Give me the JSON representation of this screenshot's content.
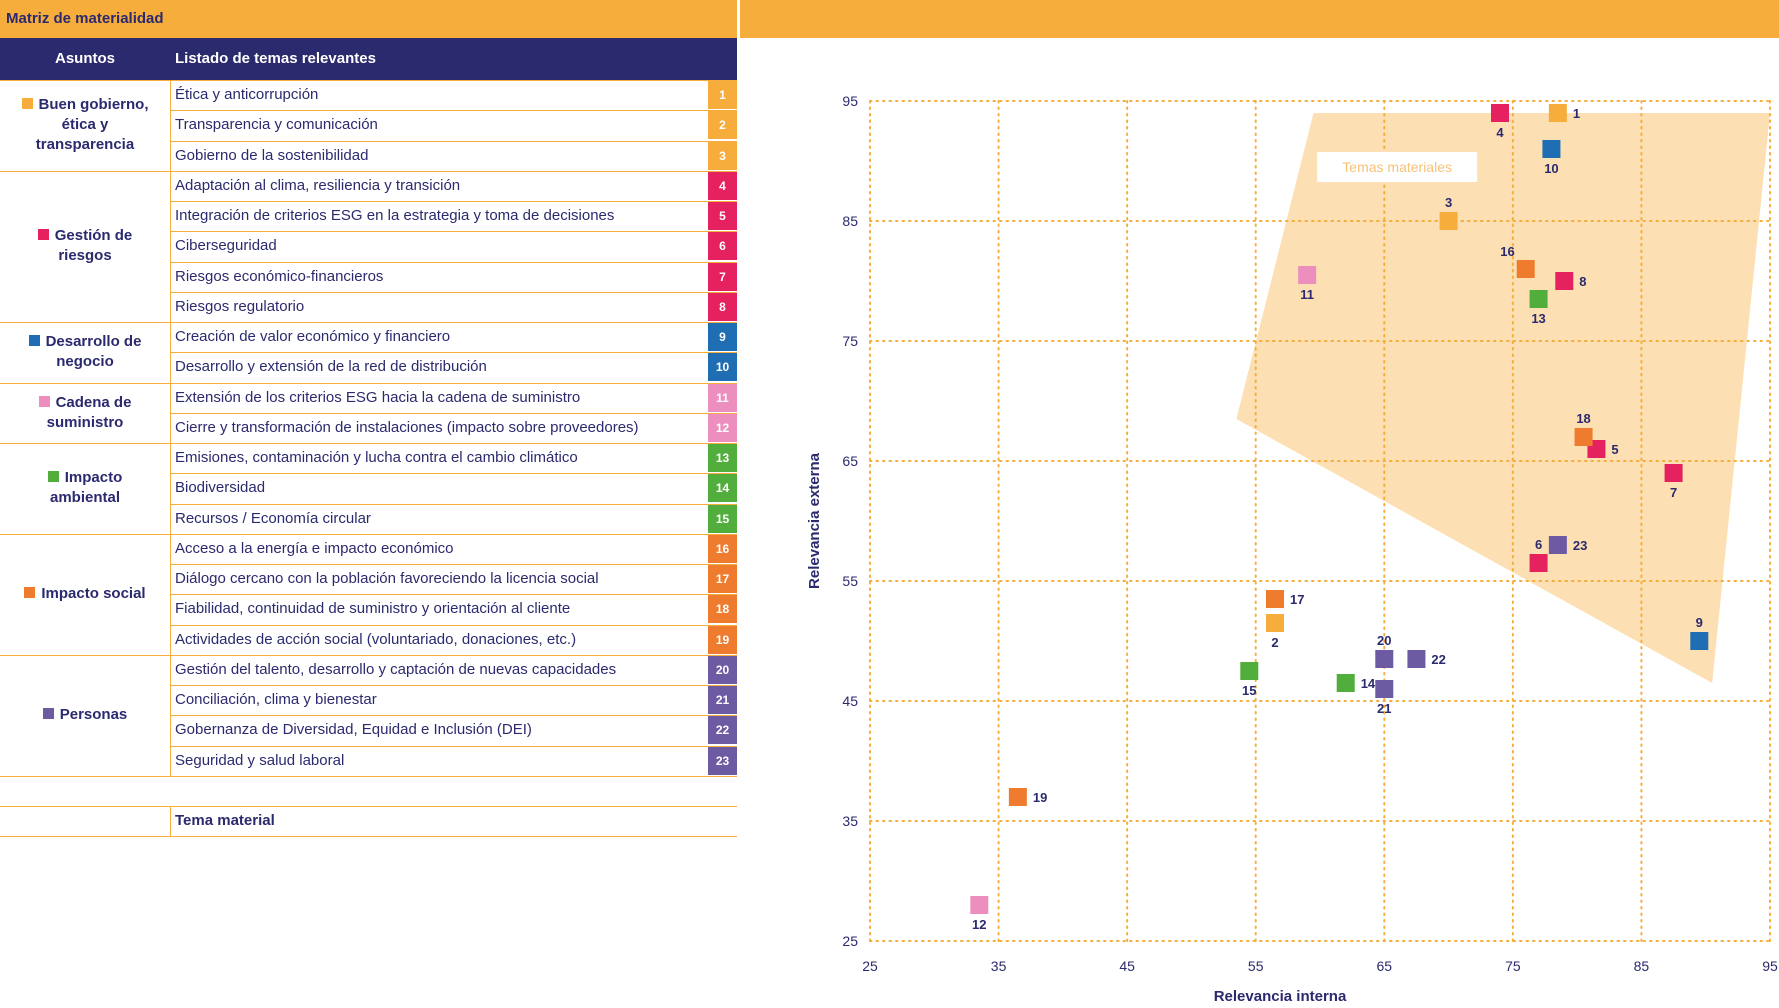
{
  "header": {
    "title": "Matriz de materialidad",
    "col_asuntos": "Asuntos",
    "col_temas": "Listado de temas relevantes",
    "footer_label": "Tema material"
  },
  "groups": [
    {
      "name": "Buen gobierno, ética y transparencia",
      "color": "#f6ad3b",
      "rows": [
        1,
        3
      ]
    },
    {
      "name": "Gestión de riesgos",
      "color": "#e5215f",
      "rows": [
        4,
        8
      ]
    },
    {
      "name": "Desarrollo de negocio",
      "color": "#1f6eb3",
      "rows": [
        9,
        10
      ]
    },
    {
      "name": "Cadena de suministro",
      "color": "#ec8fbe",
      "rows": [
        11,
        12
      ]
    },
    {
      "name": "Impacto ambiental",
      "color": "#52ae3c",
      "rows": [
        13,
        15
      ]
    },
    {
      "name": "Impacto social",
      "color": "#ee7b2e",
      "rows": [
        16,
        19
      ]
    },
    {
      "name": "Personas",
      "color": "#6c5ba2",
      "rows": [
        20,
        23
      ]
    }
  ],
  "topics": [
    {
      "num": "1",
      "label": "Ética y anticorrupción",
      "color": "#f6ad3b"
    },
    {
      "num": "2",
      "label": "Transparencia y comunicación",
      "color": "#f6ad3b"
    },
    {
      "num": "3",
      "label": "Gobierno de la sostenibilidad",
      "color": "#f6ad3b"
    },
    {
      "num": "4",
      "label": "Adaptación al clima, resiliencia y transición",
      "color": "#e5215f"
    },
    {
      "num": "5",
      "label": "Integración de criterios ESG en la estrategia y toma de decisiones",
      "color": "#e5215f"
    },
    {
      "num": "6",
      "label": "Ciberseguridad",
      "color": "#e5215f"
    },
    {
      "num": "7",
      "label": "Riesgos económico-financieros",
      "color": "#e5215f"
    },
    {
      "num": "8",
      "label": "Riesgos regulatorio",
      "color": "#e5215f"
    },
    {
      "num": "9",
      "label": "Creación de valor económico y financiero",
      "color": "#1f6eb3"
    },
    {
      "num": "10",
      "label": "Desarrollo y extensión de la red de distribución",
      "color": "#1f6eb3"
    },
    {
      "num": "11",
      "label": "Extensión de los criterios ESG hacia la cadena de suministro",
      "color": "#ec8fbe"
    },
    {
      "num": "12",
      "label": "Cierre y transformación de instalaciones (impacto sobre proveedores)",
      "color": "#ec8fbe"
    },
    {
      "num": "13",
      "label": "Emisiones, contaminación y lucha contra el cambio climático",
      "color": "#52ae3c"
    },
    {
      "num": "14",
      "label": "Biodiversidad",
      "color": "#52ae3c"
    },
    {
      "num": "15",
      "label": "Recursos / Economía circular",
      "color": "#52ae3c"
    },
    {
      "num": "16",
      "label": "Acceso a la energía e impacto económico",
      "color": "#ee7b2e"
    },
    {
      "num": "17",
      "label": "Diálogo cercano con la población favoreciendo la licencia social",
      "color": "#ee7b2e"
    },
    {
      "num": "18",
      "label": "Fiabilidad, continuidad de suministro y orientación al cliente",
      "color": "#ee7b2e"
    },
    {
      "num": "19",
      "label": "Actividades de acción social (voluntariado, donaciones, etc.)",
      "color": "#ee7b2e"
    },
    {
      "num": "20",
      "label": "Gestión del talento, desarrollo y captación de nuevas capacidades",
      "color": "#6c5ba2"
    },
    {
      "num": "21",
      "label": "Conciliación, clima y bienestar",
      "color": "#6c5ba2"
    },
    {
      "num": "22",
      "label": "Gobernanza de Diversidad, Equidad e Inclusión (DEI)",
      "color": "#6c5ba2"
    },
    {
      "num": "23",
      "label": "Seguridad y salud laboral",
      "color": "#6c5ba2"
    }
  ],
  "chart_data": {
    "type": "scatter",
    "xlabel": "Relevancia interna",
    "ylabel": "Relevancia externa",
    "xlim": [
      25,
      95
    ],
    "ylim": [
      25,
      95
    ],
    "xticks": [
      25,
      35,
      45,
      55,
      65,
      75,
      85,
      95
    ],
    "yticks": [
      25,
      35,
      45,
      55,
      65,
      75,
      85,
      95
    ],
    "grid": true,
    "region_label": "Temas materiales",
    "region_color": "#fbd9a4",
    "region_polygon": [
      [
        59.5,
        94.0
      ],
      [
        95.0,
        94.0
      ],
      [
        90.5,
        46.5
      ],
      [
        53.5,
        68.5
      ]
    ],
    "points": [
      {
        "id": "1",
        "x": 78.5,
        "y": 94.0,
        "color": "#f6ad3b",
        "lp": "r"
      },
      {
        "id": "2",
        "x": 56.5,
        "y": 51.5,
        "color": "#f6ad3b",
        "lp": "b"
      },
      {
        "id": "3",
        "x": 70.0,
        "y": 85.0,
        "color": "#f6ad3b",
        "lp": "t"
      },
      {
        "id": "4",
        "x": 74.0,
        "y": 94.0,
        "color": "#e5215f",
        "lp": "b"
      },
      {
        "id": "5",
        "x": 81.5,
        "y": 66.0,
        "color": "#e5215f",
        "lp": "r"
      },
      {
        "id": "6",
        "x": 77.0,
        "y": 56.5,
        "color": "#e5215f",
        "lp": "t"
      },
      {
        "id": "7",
        "x": 87.5,
        "y": 64.0,
        "color": "#e5215f",
        "lp": "b"
      },
      {
        "id": "8",
        "x": 79.0,
        "y": 80.0,
        "color": "#e5215f",
        "lp": "r"
      },
      {
        "id": "9",
        "x": 89.5,
        "y": 50.0,
        "color": "#1f6eb3",
        "lp": "t"
      },
      {
        "id": "10",
        "x": 78.0,
        "y": 91.0,
        "color": "#1f6eb3",
        "lp": "b"
      },
      {
        "id": "11",
        "x": 59.0,
        "y": 80.5,
        "color": "#ec8fbe",
        "lp": "b"
      },
      {
        "id": "12",
        "x": 33.5,
        "y": 28.0,
        "color": "#ec8fbe",
        "lp": "b"
      },
      {
        "id": "13",
        "x": 77.0,
        "y": 78.5,
        "color": "#52ae3c",
        "lp": "b"
      },
      {
        "id": "14",
        "x": 62.0,
        "y": 46.5,
        "color": "#52ae3c",
        "lp": "r"
      },
      {
        "id": "15",
        "x": 54.5,
        "y": 47.5,
        "color": "#52ae3c",
        "lp": "b"
      },
      {
        "id": "16",
        "x": 76.0,
        "y": 81.0,
        "color": "#ee7b2e",
        "lp": "tl"
      },
      {
        "id": "17",
        "x": 56.5,
        "y": 53.5,
        "color": "#ee7b2e",
        "lp": "r"
      },
      {
        "id": "18",
        "x": 80.5,
        "y": 67.0,
        "color": "#ee7b2e",
        "lp": "t"
      },
      {
        "id": "19",
        "x": 36.5,
        "y": 37.0,
        "color": "#ee7b2e",
        "lp": "r"
      },
      {
        "id": "20",
        "x": 65.0,
        "y": 48.5,
        "color": "#6c5ba2",
        "lp": "t"
      },
      {
        "id": "21",
        "x": 65.0,
        "y": 46.0,
        "color": "#6c5ba2",
        "lp": "b"
      },
      {
        "id": "22",
        "x": 67.5,
        "y": 48.5,
        "color": "#6c5ba2",
        "lp": "r"
      },
      {
        "id": "23",
        "x": 78.5,
        "y": 58.0,
        "color": "#6c5ba2",
        "lp": "r"
      }
    ]
  }
}
